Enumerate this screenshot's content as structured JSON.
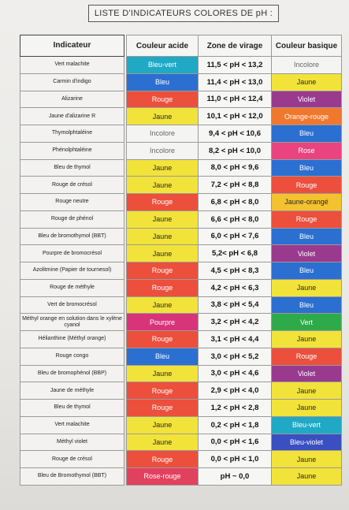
{
  "title": "LISTE D'INDICATEURS COLORES DE pH :",
  "headers": {
    "indicator": "Indicateur",
    "acid": "Couleur acide",
    "zone": "Zone de virage",
    "base": "Couleur basique"
  },
  "colors": {
    "Bleu-vert": "#1fa9c4",
    "Bleu": "#2b6fd1",
    "Rouge": "#ec4f3c",
    "Jaune": "#f2e33a",
    "Incolore": "#f4f4f2",
    "Violet": "#9a3a8f",
    "Orange-rouge": "#f0782e",
    "Rose": "#e9447f",
    "Jaune-orangé": "#f3c22e",
    "Pourpre": "#d8347a",
    "Vert": "#2faa4a",
    "Bleu-violet": "#3a4fc0",
    "Rose-rouge": "#e2405f"
  },
  "rows": [
    {
      "indicator": "Vert malachite",
      "acid": "Bleu-vert",
      "zone": "11,5 < pH < 13,2",
      "base": "Incolore"
    },
    {
      "indicator": "Carmin d'indigo",
      "acid": "Bleu",
      "zone": "11,4 < pH < 13,0",
      "base": "Jaune"
    },
    {
      "indicator": "Alizarine",
      "acid": "Rouge",
      "zone": "11,0 < pH < 12,4",
      "base": "Violet"
    },
    {
      "indicator": "Jaune d'alizarine R",
      "acid": "Jaune",
      "zone": "10,1 < pH < 12,0",
      "base": "Orange-rouge"
    },
    {
      "indicator": "Thymolphtaléine",
      "acid": "Incolore",
      "zone": "9,4 < pH < 10,6",
      "base": "Bleu"
    },
    {
      "indicator": "Phénolphtaléine",
      "acid": "Incolore",
      "zone": "8,2 < pH < 10,0",
      "base": "Rose"
    },
    {
      "indicator": "Bleu de thymol",
      "acid": "Jaune",
      "zone": "8,0 < pH < 9,6",
      "base": "Bleu"
    },
    {
      "indicator": "Rouge de crésol",
      "acid": "Jaune",
      "zone": "7,2 < pH < 8,8",
      "base": "Rouge"
    },
    {
      "indicator": "Rouge neutre",
      "acid": "Rouge",
      "zone": "6,8 < pH < 8,0",
      "base": "Jaune-orangé"
    },
    {
      "indicator": "Rouge de phénol",
      "acid": "Jaune",
      "zone": "6,6 < pH < 8,0",
      "base": "Rouge"
    },
    {
      "indicator": "Bleu de bromothymol (BBT)",
      "acid": "Jaune",
      "zone": "6,0 < pH < 7,6",
      "base": "Bleu"
    },
    {
      "indicator": "Pourpre de bromocrésol",
      "acid": "Jaune",
      "zone": "5,2< pH < 6,8",
      "base": "Violet"
    },
    {
      "indicator": "Azolitmine (Papier de tournesol)",
      "acid": "Rouge",
      "zone": "4,5 < pH < 8,3",
      "base": "Bleu"
    },
    {
      "indicator": "Rouge de méthyle",
      "acid": "Rouge",
      "zone": "4,2 < pH < 6,3",
      "base": "Jaune"
    },
    {
      "indicator": "Vert de bromocrésol",
      "acid": "Jaune",
      "zone": "3,8 < pH < 5,4",
      "base": "Bleu"
    },
    {
      "indicator": "Méthyl orange en solution dans le xylène cyanol",
      "acid": "Pourpre",
      "zone": "3,2 < pH < 4,2",
      "base": "Vert"
    },
    {
      "indicator": "Hélianthine (Méthyl orange)",
      "acid": "Rouge",
      "zone": "3,1 < pH < 4,4",
      "base": "Jaune"
    },
    {
      "indicator": "Rouge congo",
      "acid": "Bleu",
      "zone": "3,0 < pH < 5,2",
      "base": "Rouge"
    },
    {
      "indicator": "Bleu de bromophénol (BBP)",
      "acid": "Jaune",
      "zone": "3,0 < pH < 4,6",
      "base": "Violet"
    },
    {
      "indicator": "Jaune de méthyle",
      "acid": "Rouge",
      "zone": "2,9 < pH < 4,0",
      "base": "Jaune"
    },
    {
      "indicator": "Bleu de thymol",
      "acid": "Rouge",
      "zone": "1,2 < pH < 2,8",
      "base": "Jaune"
    },
    {
      "indicator": "Vert malachite",
      "acid": "Jaune",
      "zone": "0,2 < pH < 1,8",
      "base": "Bleu-vert"
    },
    {
      "indicator": "Méthyl violet",
      "acid": "Jaune",
      "zone": "0,0 < pH < 1,6",
      "base": "Bleu-violet"
    },
    {
      "indicator": "Rouge de crésol",
      "acid": "Rouge",
      "zone": "0,0 < pH < 1,0",
      "base": "Jaune"
    },
    {
      "indicator": "Bleu de Bromothymol (BBT)",
      "acid": "Rose-rouge",
      "zone": "pH ~ 0,0",
      "base": "Jaune"
    }
  ]
}
